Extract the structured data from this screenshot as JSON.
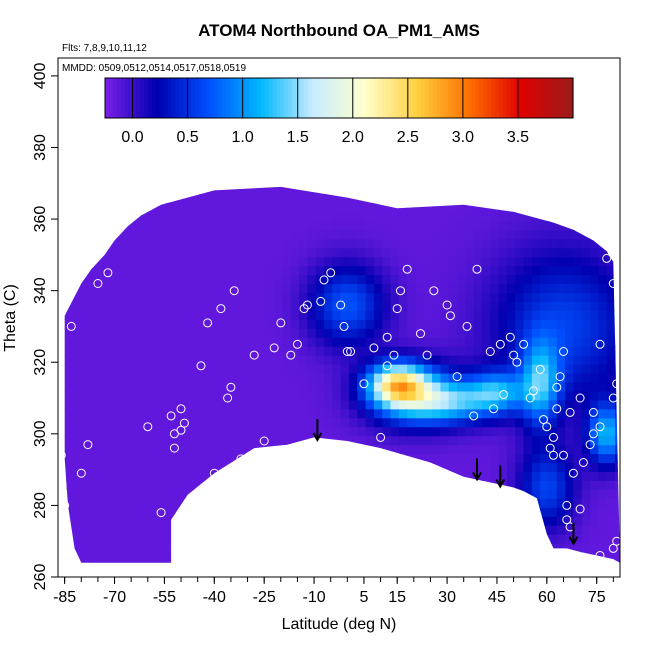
{
  "chart_data": {
    "type": "heatmap",
    "title": "ATOM4 Northbound OA_PM1_AMS",
    "flights_text": "Flts: 7,8,9,10,11,12",
    "mmdd_text": "MMDD: 0509,0512,0514,0517,0518,0519",
    "xlabel": "Latitude (deg N)",
    "ylabel": "Theta (C)",
    "xlim": [
      -87,
      82
    ],
    "ylim": [
      260,
      405
    ],
    "x_ticks": [
      -85,
      -70,
      -55,
      -40,
      -25,
      -10,
      5,
      15,
      30,
      45,
      60,
      75
    ],
    "x_tick_labels": [
      "-85",
      "-70",
      "-55",
      "-40",
      "-25",
      "-10",
      "5",
      "15",
      "30",
      "45",
      "60",
      "75"
    ],
    "y_ticks": [
      260,
      280,
      300,
      320,
      340,
      360,
      380,
      400
    ],
    "y_tick_labels": [
      "260",
      "280",
      "300",
      "320",
      "340",
      "360",
      "380",
      "400"
    ],
    "colorbar": {
      "range": [
        -0.25,
        4.0
      ],
      "ticks": [
        0.0,
        0.5,
        1.0,
        1.5,
        2.0,
        2.5,
        3.0,
        3.5
      ],
      "tick_labels": [
        "0.0",
        "0.5",
        "1.0",
        "1.5",
        "2.0",
        "2.5",
        "3.0",
        "3.5"
      ],
      "colors": [
        "#7b1fe8",
        "#0000b0",
        "#0050ff",
        "#00b8ff",
        "#c8ecff",
        "#ffffcc",
        "#ffd040",
        "#ff7000",
        "#e00000",
        "#9b1b1b"
      ]
    },
    "upper_boundary": [
      [
        -85,
        333
      ],
      [
        -80,
        342
      ],
      [
        -77,
        346
      ],
      [
        -73,
        350
      ],
      [
        -70,
        354
      ],
      [
        -66,
        358
      ],
      [
        -62,
        361
      ],
      [
        -56,
        364
      ],
      [
        -40,
        368
      ],
      [
        -20,
        369
      ],
      [
        0,
        366
      ],
      [
        15,
        363
      ],
      [
        35,
        364
      ],
      [
        50,
        362
      ],
      [
        62,
        359
      ],
      [
        68,
        357
      ],
      [
        74,
        354
      ],
      [
        78,
        351
      ],
      [
        80,
        348
      ]
    ],
    "lower_boundary": [
      [
        -85,
        293
      ],
      [
        -84,
        280
      ],
      [
        -82,
        268
      ],
      [
        -80,
        264
      ],
      [
        -53,
        264
      ],
      [
        -53,
        276
      ],
      [
        -48,
        283
      ],
      [
        -40,
        289
      ],
      [
        -28,
        296
      ],
      [
        -18,
        297
      ],
      [
        -10,
        299
      ],
      [
        0,
        298
      ],
      [
        10,
        296
      ],
      [
        25,
        292
      ],
      [
        35,
        288
      ],
      [
        45,
        286
      ],
      [
        50,
        285
      ],
      [
        53,
        284
      ],
      [
        57,
        282
      ],
      [
        60,
        272
      ],
      [
        62,
        268
      ],
      [
        66,
        268
      ],
      [
        70,
        267
      ],
      [
        75,
        266
      ],
      [
        80,
        265
      ],
      [
        82,
        264
      ]
    ],
    "concentration_field": {
      "background": -0.15,
      "features": [
        {
          "lat": -50,
          "theta": 310,
          "sx": 30,
          "sy": 20,
          "v": -0.15
        },
        {
          "lat": 15,
          "theta": 314,
          "sx": 6,
          "sy": 4,
          "v": 1.75
        },
        {
          "lat": 20,
          "theta": 311,
          "sx": 10,
          "sy": 6,
          "v": 1.1
        },
        {
          "lat": 32,
          "theta": 309,
          "sx": 10,
          "sy": 4,
          "v": 0.85
        },
        {
          "lat": 45,
          "theta": 312,
          "sx": 6,
          "sy": 4,
          "v": 0.85
        },
        {
          "lat": 58,
          "theta": 314,
          "sx": 4,
          "sy": 8,
          "v": 1.0
        },
        {
          "lat": 78,
          "theta": 300,
          "sx": 4,
          "sy": 6,
          "v": 1.1
        },
        {
          "lat": 0,
          "theta": 336,
          "sx": 8,
          "sy": 8,
          "v": 0.7
        },
        {
          "lat": 65,
          "theta": 330,
          "sx": 15,
          "sy": 15,
          "v": 0.6
        },
        {
          "lat": 60,
          "theta": 285,
          "sx": 6,
          "sy": 8,
          "v": 0.6
        }
      ]
    },
    "sample_points": [
      [
        -86,
        294
      ],
      [
        -85,
        280
      ],
      [
        -83,
        330
      ],
      [
        -80,
        289
      ],
      [
        -78,
        297
      ],
      [
        -75,
        342
      ],
      [
        -72,
        345
      ],
      [
        -60,
        302
      ],
      [
        -56,
        278
      ],
      [
        -53,
        305
      ],
      [
        -52,
        296
      ],
      [
        -52,
        300
      ],
      [
        -50,
        307
      ],
      [
        -50,
        301
      ],
      [
        -49,
        303
      ],
      [
        -46,
        280
      ],
      [
        -44,
        319
      ],
      [
        -42,
        331
      ],
      [
        -40,
        289
      ],
      [
        -38,
        335
      ],
      [
        -36,
        310
      ],
      [
        -35,
        313
      ],
      [
        -34,
        340
      ],
      [
        -32,
        293
      ],
      [
        -28,
        322
      ],
      [
        -25,
        298
      ],
      [
        -22,
        324
      ],
      [
        -20,
        331
      ],
      [
        -17,
        322
      ],
      [
        -15,
        325
      ],
      [
        -13,
        335
      ],
      [
        -12,
        336
      ],
      [
        -8,
        337
      ],
      [
        -7,
        343
      ],
      [
        -5,
        345
      ],
      [
        -2,
        336
      ],
      [
        -1,
        330
      ],
      [
        0,
        323
      ],
      [
        1,
        323
      ],
      [
        5,
        314
      ],
      [
        8,
        324
      ],
      [
        10,
        299
      ],
      [
        12,
        327
      ],
      [
        12,
        319
      ],
      [
        14,
        322
      ],
      [
        15,
        335
      ],
      [
        16,
        340
      ],
      [
        18,
        346
      ],
      [
        22,
        328
      ],
      [
        24,
        322
      ],
      [
        26,
        340
      ],
      [
        30,
        336
      ],
      [
        31,
        333
      ],
      [
        33,
        316
      ],
      [
        36,
        330
      ],
      [
        38,
        305
      ],
      [
        39,
        346
      ],
      [
        43,
        323
      ],
      [
        44,
        307
      ],
      [
        46,
        325
      ],
      [
        47,
        311
      ],
      [
        49,
        327
      ],
      [
        50,
        322
      ],
      [
        51,
        320
      ],
      [
        53,
        325
      ],
      [
        55,
        310
      ],
      [
        56,
        312
      ],
      [
        58,
        318
      ],
      [
        59,
        304
      ],
      [
        60,
        302
      ],
      [
        61,
        296
      ],
      [
        62,
        294
      ],
      [
        62,
        299
      ],
      [
        63,
        307
      ],
      [
        63,
        313
      ],
      [
        64,
        316
      ],
      [
        65,
        294
      ],
      [
        65,
        323
      ],
      [
        66,
        280
      ],
      [
        66,
        276
      ],
      [
        67,
        274
      ],
      [
        68,
        289
      ],
      [
        70,
        279
      ],
      [
        71,
        292
      ],
      [
        73,
        297
      ],
      [
        74,
        306
      ],
      [
        74,
        300
      ],
      [
        76,
        302
      ],
      [
        76,
        325
      ],
      [
        77,
        356
      ],
      [
        78,
        349
      ],
      [
        79,
        353
      ],
      [
        80,
        342
      ],
      [
        80,
        310
      ],
      [
        81,
        314
      ],
      [
        82,
        330
      ],
      [
        82,
        328
      ],
      [
        83,
        302
      ],
      [
        83,
        297
      ],
      [
        81,
        270
      ],
      [
        80,
        268
      ],
      [
        76,
        266
      ],
      [
        73,
        265
      ],
      [
        70,
        310
      ],
      [
        67,
        306
      ]
    ],
    "arrows": [
      {
        "lat": -9,
        "theta": 298
      },
      {
        "lat": 39,
        "theta": 287
      },
      {
        "lat": 46,
        "theta": 285
      },
      {
        "lat": 68,
        "theta": 269
      }
    ]
  }
}
